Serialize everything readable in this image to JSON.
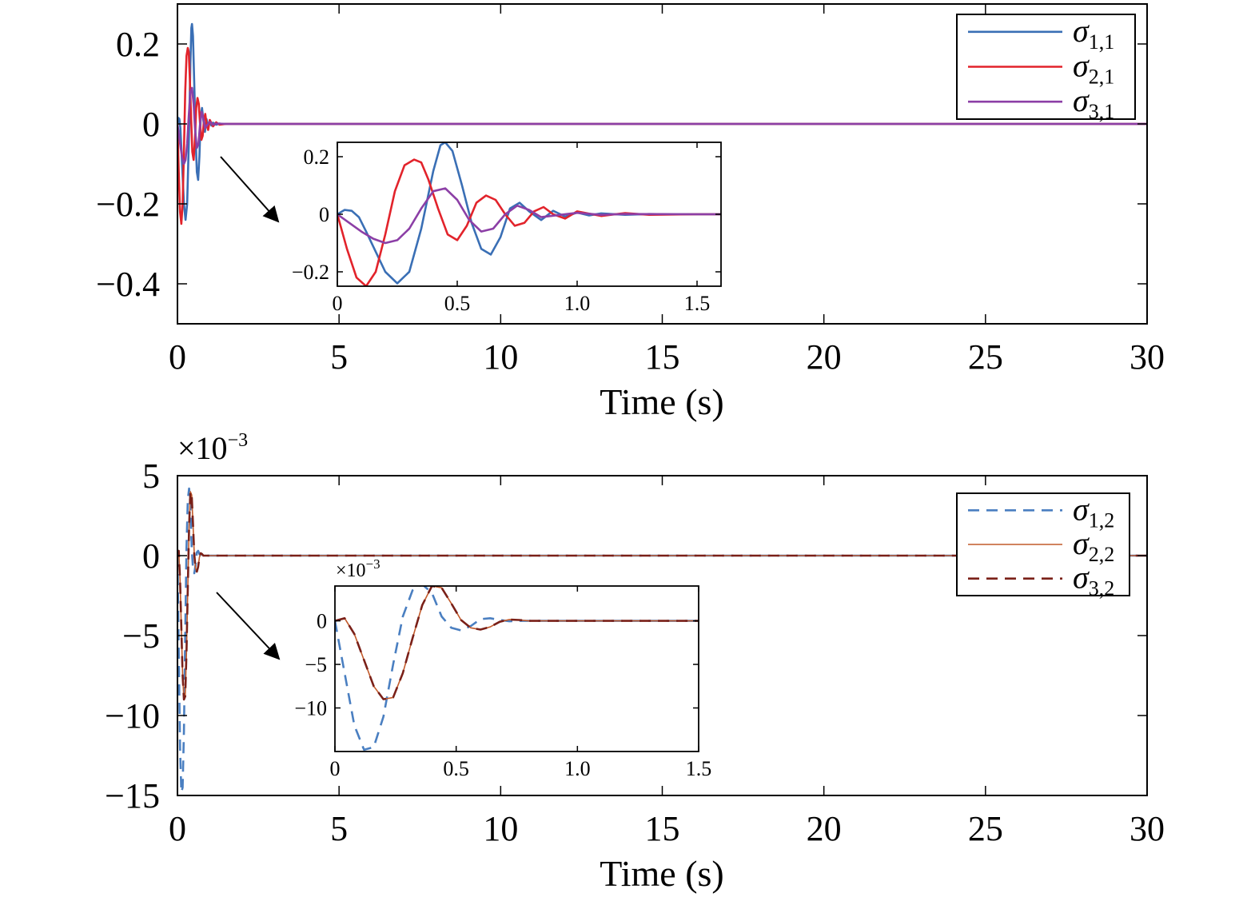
{
  "chart_data": [
    {
      "type": "line",
      "xlabel": "Time (s)",
      "xlim": [
        0,
        30
      ],
      "ylim": [
        -0.5,
        0.3
      ],
      "xticks": [
        0,
        5,
        10,
        15,
        20,
        25,
        30
      ],
      "yticks": [
        -0.4,
        -0.2,
        0,
        0.2
      ],
      "ytick_labels": [
        "−0.4",
        "−0.2",
        "0",
        "0.2"
      ],
      "legend_position": "top-right",
      "series": [
        {
          "name": "σ",
          "sub": "1,1",
          "color": "#3a6fb5",
          "style": "solid",
          "x": [
            0,
            0.03,
            0.06,
            0.09,
            0.12,
            0.16,
            0.2,
            0.25,
            0.3,
            0.35,
            0.4,
            0.43,
            0.45,
            0.48,
            0.52,
            0.56,
            0.6,
            0.64,
            0.68,
            0.72,
            0.76,
            0.8,
            0.85,
            0.9,
            0.95,
            1.0,
            1.05,
            1.1,
            1.2,
            1.3,
            1.4,
            1.5,
            2.0,
            5,
            10,
            20,
            30
          ],
          "y": [
            0,
            0.015,
            0.012,
            -0.01,
            -0.06,
            -0.13,
            -0.2,
            -0.24,
            -0.2,
            -0.05,
            0.15,
            0.24,
            0.25,
            0.22,
            0.1,
            -0.03,
            -0.12,
            -0.14,
            -0.08,
            0.02,
            0.04,
            0.01,
            -0.02,
            0.012,
            -0.008,
            0.006,
            -0.004,
            0.003,
            -0.002,
            0.001,
            0,
            0,
            0,
            0,
            0,
            0,
            0
          ]
        },
        {
          "name": "σ",
          "sub": "2,1",
          "color": "#e2232b",
          "style": "solid",
          "x": [
            0,
            0.04,
            0.08,
            0.12,
            0.16,
            0.2,
            0.24,
            0.28,
            0.32,
            0.35,
            0.38,
            0.42,
            0.46,
            0.5,
            0.54,
            0.58,
            0.62,
            0.66,
            0.7,
            0.74,
            0.78,
            0.82,
            0.86,
            0.9,
            0.95,
            1.0,
            1.1,
            1.2,
            1.3,
            1.5,
            2.0,
            5,
            10,
            20,
            30
          ],
          "y": [
            0,
            -0.12,
            -0.22,
            -0.25,
            -0.2,
            -0.07,
            0.08,
            0.17,
            0.19,
            0.18,
            0.12,
            0.02,
            -0.07,
            -0.09,
            -0.04,
            0.04,
            0.065,
            0.05,
            0.0,
            -0.04,
            -0.03,
            0.01,
            0.025,
            0.0,
            -0.015,
            0.01,
            -0.006,
            0.004,
            -0.002,
            0,
            0,
            0,
            0,
            0,
            0
          ]
        },
        {
          "name": "σ",
          "sub": "3,1",
          "color": "#8c3fa6",
          "style": "solid",
          "x": [
            0,
            0.05,
            0.1,
            0.15,
            0.2,
            0.25,
            0.3,
            0.35,
            0.4,
            0.45,
            0.5,
            0.55,
            0.6,
            0.65,
            0.7,
            0.75,
            0.8,
            0.85,
            0.9,
            1.0,
            1.1,
            1.2,
            1.5,
            2.0,
            5,
            10,
            20,
            30
          ],
          "y": [
            0,
            -0.03,
            -0.06,
            -0.085,
            -0.1,
            -0.09,
            -0.05,
            0.02,
            0.08,
            0.09,
            0.05,
            -0.02,
            -0.06,
            -0.05,
            0.0,
            0.03,
            0.015,
            -0.01,
            -0.005,
            0.005,
            -0.002,
            0.001,
            0,
            0,
            0,
            0,
            0,
            0
          ]
        }
      ],
      "inset": {
        "xlim": [
          0,
          1.6
        ],
        "ylim": [
          -0.25,
          0.25
        ],
        "xticks": [
          0,
          0.5,
          1.0,
          1.5
        ],
        "xtick_labels": [
          "0",
          "0.5",
          "1.0",
          "1.5"
        ],
        "yticks": [
          -0.2,
          0,
          0.2
        ],
        "ytick_labels": [
          "−0.2",
          "0",
          "0.2"
        ]
      }
    },
    {
      "type": "line",
      "xlabel": "Time (s)",
      "multiplier": "×10",
      "multiplier_exp": "−3",
      "xlim": [
        0,
        30
      ],
      "ylim": [
        -15,
        5
      ],
      "xticks": [
        0,
        5,
        10,
        15,
        20,
        25,
        30
      ],
      "yticks": [
        -15,
        -10,
        -5,
        0,
        5
      ],
      "ytick_labels": [
        "−15",
        "−10",
        "−5",
        "0",
        "5"
      ],
      "legend_position": "top-right",
      "series": [
        {
          "name": "σ",
          "sub": "1,2",
          "color": "#4a7fc1",
          "style": "dashed",
          "x": [
            0,
            0.04,
            0.08,
            0.12,
            0.16,
            0.2,
            0.24,
            0.28,
            0.32,
            0.36,
            0.4,
            0.44,
            0.48,
            0.52,
            0.56,
            0.6,
            0.64,
            0.68,
            0.72,
            0.76,
            0.8,
            0.85,
            0.9,
            1.0,
            1.2,
            1.5,
            2.0,
            5,
            10,
            20,
            30
          ],
          "y": [
            0,
            -6,
            -12,
            -14.8,
            -14.5,
            -11,
            -5,
            0.5,
            3.5,
            4.2,
            3.2,
            0.5,
            -0.8,
            -1.1,
            -0.6,
            0.2,
            0.3,
            0.1,
            -0.05,
            0,
            0,
            0,
            0,
            0,
            0,
            0,
            0,
            0,
            0,
            0,
            0
          ]
        },
        {
          "name": "σ",
          "sub": "2,2",
          "color": "#c25a2a",
          "style": "solid",
          "x": [
            0,
            0.04,
            0.08,
            0.12,
            0.16,
            0.2,
            0.24,
            0.28,
            0.32,
            0.36,
            0.4,
            0.44,
            0.48,
            0.52,
            0.56,
            0.6,
            0.64,
            0.68,
            0.72,
            0.76,
            0.8,
            0.85,
            0.9,
            1.0,
            1.2,
            1.5,
            2.0,
            5,
            10,
            20,
            30
          ],
          "y": [
            0,
            0.3,
            -1.5,
            -4.5,
            -7.5,
            -9.0,
            -8.8,
            -6.0,
            -2.0,
            1.8,
            4.0,
            3.8,
            2.0,
            0.1,
            -0.8,
            -1.0,
            -0.7,
            -0.1,
            0.15,
            0.1,
            0,
            0,
            0,
            0,
            0,
            0,
            0,
            0,
            0,
            0,
            0
          ]
        },
        {
          "name": "σ",
          "sub": "3,2",
          "color": "#7a2018",
          "style": "dashed",
          "x": [
            0,
            0.04,
            0.08,
            0.12,
            0.16,
            0.2,
            0.24,
            0.28,
            0.32,
            0.36,
            0.4,
            0.44,
            0.48,
            0.52,
            0.56,
            0.6,
            0.64,
            0.68,
            0.72,
            0.76,
            0.8,
            0.85,
            0.9,
            1.0,
            1.2,
            1.5,
            2.0,
            5,
            10,
            20,
            30
          ],
          "y": [
            0,
            0.3,
            -1.5,
            -4.5,
            -7.5,
            -9.0,
            -8.8,
            -6.0,
            -2.0,
            1.8,
            4.0,
            3.8,
            2.0,
            0.1,
            -0.8,
            -1.0,
            -0.7,
            -0.1,
            0.15,
            0.1,
            0,
            0,
            0,
            0,
            0,
            0,
            0,
            0,
            0,
            0,
            0
          ]
        }
      ],
      "inset": {
        "xlim": [
          0,
          1.5
        ],
        "ylim": [
          -15,
          4
        ],
        "xticks": [
          0,
          0.5,
          1.0,
          1.5
        ],
        "xtick_labels": [
          "0",
          "0.5",
          "1.0",
          "1.5"
        ],
        "yticks": [
          -10,
          -5,
          0
        ],
        "ytick_labels": [
          "−10",
          "−5",
          "0"
        ],
        "multiplier": "×10",
        "multiplier_exp": "−3"
      }
    }
  ]
}
